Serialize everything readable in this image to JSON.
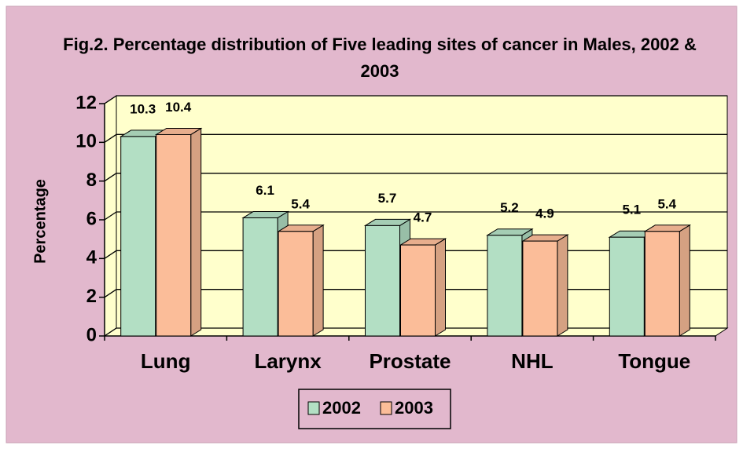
{
  "chart_data": {
    "type": "bar3d",
    "title": "Fig.2. Percentage distribution of Five leading sites of cancer in Males, 2002 & 2003",
    "ylabel": "Percentage",
    "categories": [
      "Lung",
      "Larynx",
      "Prostate",
      "NHL",
      "Tongue"
    ],
    "series": [
      {
        "name": "2002",
        "color": "#b3dfc4",
        "values": [
          10.3,
          6.1,
          5.7,
          5.2,
          5.1
        ]
      },
      {
        "name": "2003",
        "color": "#fbbd99",
        "values": [
          10.4,
          5.4,
          4.7,
          4.9,
          5.4
        ]
      }
    ],
    "ylim": [
      0,
      12
    ],
    "yticks": [
      0,
      2,
      4,
      6,
      8,
      10,
      12
    ],
    "grid": true,
    "legend": "bottom"
  }
}
